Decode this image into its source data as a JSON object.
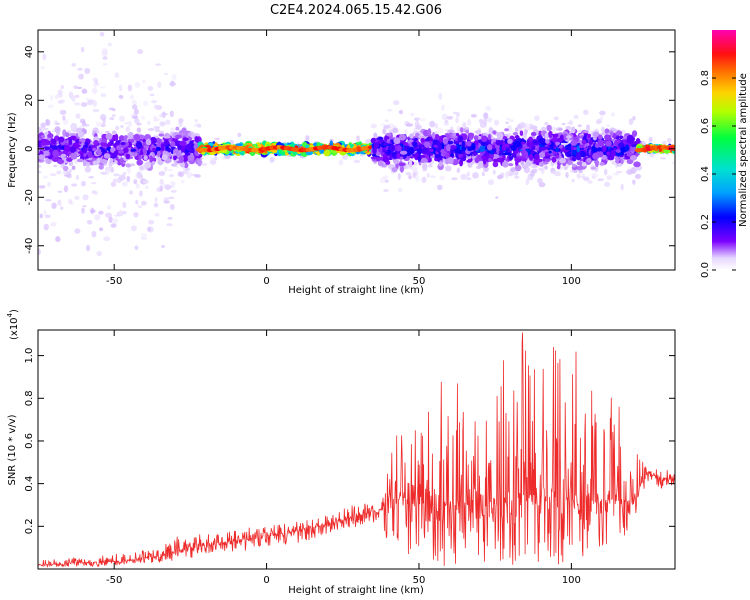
{
  "figure": {
    "title": "C2E4.2024.065.15.42.G06"
  },
  "colors": {
    "signal_line": "#ee2b2b",
    "background": "#ffffff",
    "axis": "#000000"
  },
  "chart_data": [
    {
      "type": "heatmap",
      "xlabel": "Height of straight line (km)",
      "ylabel": "Frequency (Hz)",
      "xlim": [
        -75,
        134
      ],
      "ylim": [
        -50,
        49
      ],
      "x_ticks": [
        -50,
        0,
        50,
        100
      ],
      "y_ticks": [
        -40,
        -20,
        0,
        20,
        40
      ],
      "description_of_data": [
        {
          "x_range": [
            -75,
            -22
          ],
          "freq_center": 0,
          "freq_spread": 8,
          "amplitude": 0.25
        },
        {
          "x_range": [
            -22,
            35
          ],
          "freq_center": 0,
          "freq_spread": 2,
          "amplitude": 0.9
        },
        {
          "x_range": [
            35,
            122
          ],
          "freq_center": 0,
          "freq_spread": 8,
          "amplitude": 0.3
        },
        {
          "x_range": [
            122,
            134
          ],
          "freq_center": 0,
          "freq_spread": 1,
          "amplitude": 0.95
        }
      ],
      "colorbar": {
        "label": "Normalized spectral amplitude",
        "range": [
          0.0,
          1.0
        ],
        "ticks": [
          0.0,
          0.2,
          0.4,
          0.6,
          0.8
        ],
        "tick_labels": [
          "0.0",
          "0.2",
          "0.4",
          "0.6",
          "0.8"
        ],
        "colormap": [
          "#ffffff",
          "#d9c2ff",
          "#7b00ff",
          "#0000ff",
          "#00c8ff",
          "#00ff60",
          "#b4ff00",
          "#ffd200",
          "#ff7800",
          "#ff0000",
          "#ff00a8"
        ]
      },
      "grid": false
    },
    {
      "type": "line",
      "xlabel": "Height of straight line (km)",
      "ylabel": "SNR (10 * v/v)",
      "scale_label": "(x10",
      "scale_exponent": "4",
      "scale_close": ")",
      "xlim": [
        -75,
        134
      ],
      "ylim": [
        0.0,
        1.12
      ],
      "x_ticks": [
        -50,
        0,
        50,
        100
      ],
      "y_ticks": [
        0.2,
        0.4,
        0.6,
        0.8,
        1.0
      ],
      "y_tick_labels": [
        "0.2",
        "0.4",
        "0.6",
        "0.8",
        "1.0"
      ],
      "series": [
        {
          "x": [
            -75,
            -60,
            -45,
            -35,
            -28,
            -20,
            -10,
            0,
            10,
            20,
            30,
            38,
            40,
            50,
            60,
            70,
            80,
            85,
            90,
            100,
            110,
            115,
            120,
            125,
            130,
            134
          ],
          "y_mean": [
            0.02,
            0.03,
            0.04,
            0.06,
            0.09,
            0.11,
            0.13,
            0.15,
            0.18,
            0.21,
            0.25,
            0.28,
            0.33,
            0.32,
            0.3,
            0.3,
            0.34,
            0.35,
            0.34,
            0.33,
            0.32,
            0.33,
            0.32,
            0.45,
            0.42,
            0.44
          ],
          "y_max": [
            0.04,
            0.06,
            0.08,
            0.1,
            0.17,
            0.16,
            0.19,
            0.2,
            0.23,
            0.26,
            0.31,
            0.34,
            0.6,
            0.78,
            0.92,
            0.85,
            1.12,
            1.12,
            1.05,
            1.07,
            0.88,
            0.8,
            0.65,
            0.48,
            0.46,
            0.48
          ],
          "y_min": [
            0.01,
            0.01,
            0.02,
            0.03,
            0.04,
            0.06,
            0.08,
            0.1,
            0.12,
            0.16,
            0.2,
            0.22,
            0.08,
            0.02,
            0.01,
            0.03,
            0.02,
            0.01,
            0.02,
            0.02,
            0.04,
            0.1,
            0.2,
            0.4,
            0.37,
            0.4
          ]
        }
      ],
      "grid": false
    }
  ]
}
